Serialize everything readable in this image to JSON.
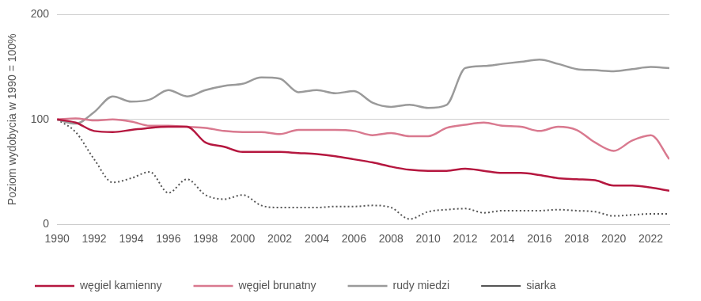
{
  "chart_data": {
    "type": "line",
    "y_label": "Poziom wydobycia w 1990 = 100%",
    "x": [
      1990,
      1991,
      1992,
      1993,
      1994,
      1995,
      1996,
      1997,
      1998,
      1999,
      2000,
      2001,
      2002,
      2003,
      2004,
      2005,
      2006,
      2007,
      2008,
      2009,
      2010,
      2011,
      2012,
      2013,
      2014,
      2015,
      2016,
      2017,
      2018,
      2019,
      2020,
      2021,
      2022,
      2023
    ],
    "series": [
      {
        "name": "węgiel kamienny",
        "color": "#b5173f",
        "line_style": "solid",
        "values": [
          100,
          97,
          89,
          88,
          90,
          92,
          93,
          93,
          78,
          74,
          69,
          69,
          69,
          68,
          67,
          65,
          62,
          59,
          55,
          52,
          51,
          51,
          53,
          51,
          49,
          49,
          47,
          44,
          43,
          42,
          37,
          37,
          35,
          32
        ]
      },
      {
        "name": "węgiel brunatny",
        "color": "#d9798f",
        "line_style": "solid",
        "values": [
          100,
          101,
          99,
          100,
          98,
          94,
          94,
          93,
          92,
          89,
          88,
          88,
          86,
          90,
          90,
          90,
          89,
          85,
          87,
          84,
          84,
          92,
          95,
          97,
          94,
          93,
          89,
          93,
          90,
          78,
          70,
          80,
          85,
          62
        ]
      },
      {
        "name": "rudy miedzi",
        "color": "#9a9a9a",
        "line_style": "solid",
        "values": [
          100,
          96,
          107,
          122,
          117,
          119,
          128,
          122,
          128,
          132,
          134,
          140,
          139,
          126,
          128,
          125,
          127,
          116,
          112,
          114,
          111,
          114,
          149,
          151,
          153,
          155,
          157,
          153,
          148,
          147,
          146,
          148,
          150,
          149
        ]
      },
      {
        "name": "siarka",
        "color": "#555555",
        "line_style": "dotted",
        "values": [
          100,
          88,
          62,
          40,
          44,
          50,
          30,
          43,
          28,
          24,
          28,
          18,
          16,
          16,
          16,
          17,
          17,
          18,
          16,
          5,
          12,
          14,
          15,
          11,
          13,
          13,
          13,
          14,
          13,
          12,
          8,
          9,
          10,
          10
        ]
      }
    ],
    "xlim": [
      1990,
      2023
    ],
    "xticks": [
      1990,
      1992,
      1994,
      1996,
      1998,
      2000,
      2002,
      2004,
      2006,
      2008,
      2010,
      2012,
      2014,
      2016,
      2018,
      2020,
      2022
    ],
    "ylim": [
      0,
      200
    ],
    "yticks": [
      0,
      100,
      200
    ],
    "grid": true,
    "legend": "bottom"
  }
}
